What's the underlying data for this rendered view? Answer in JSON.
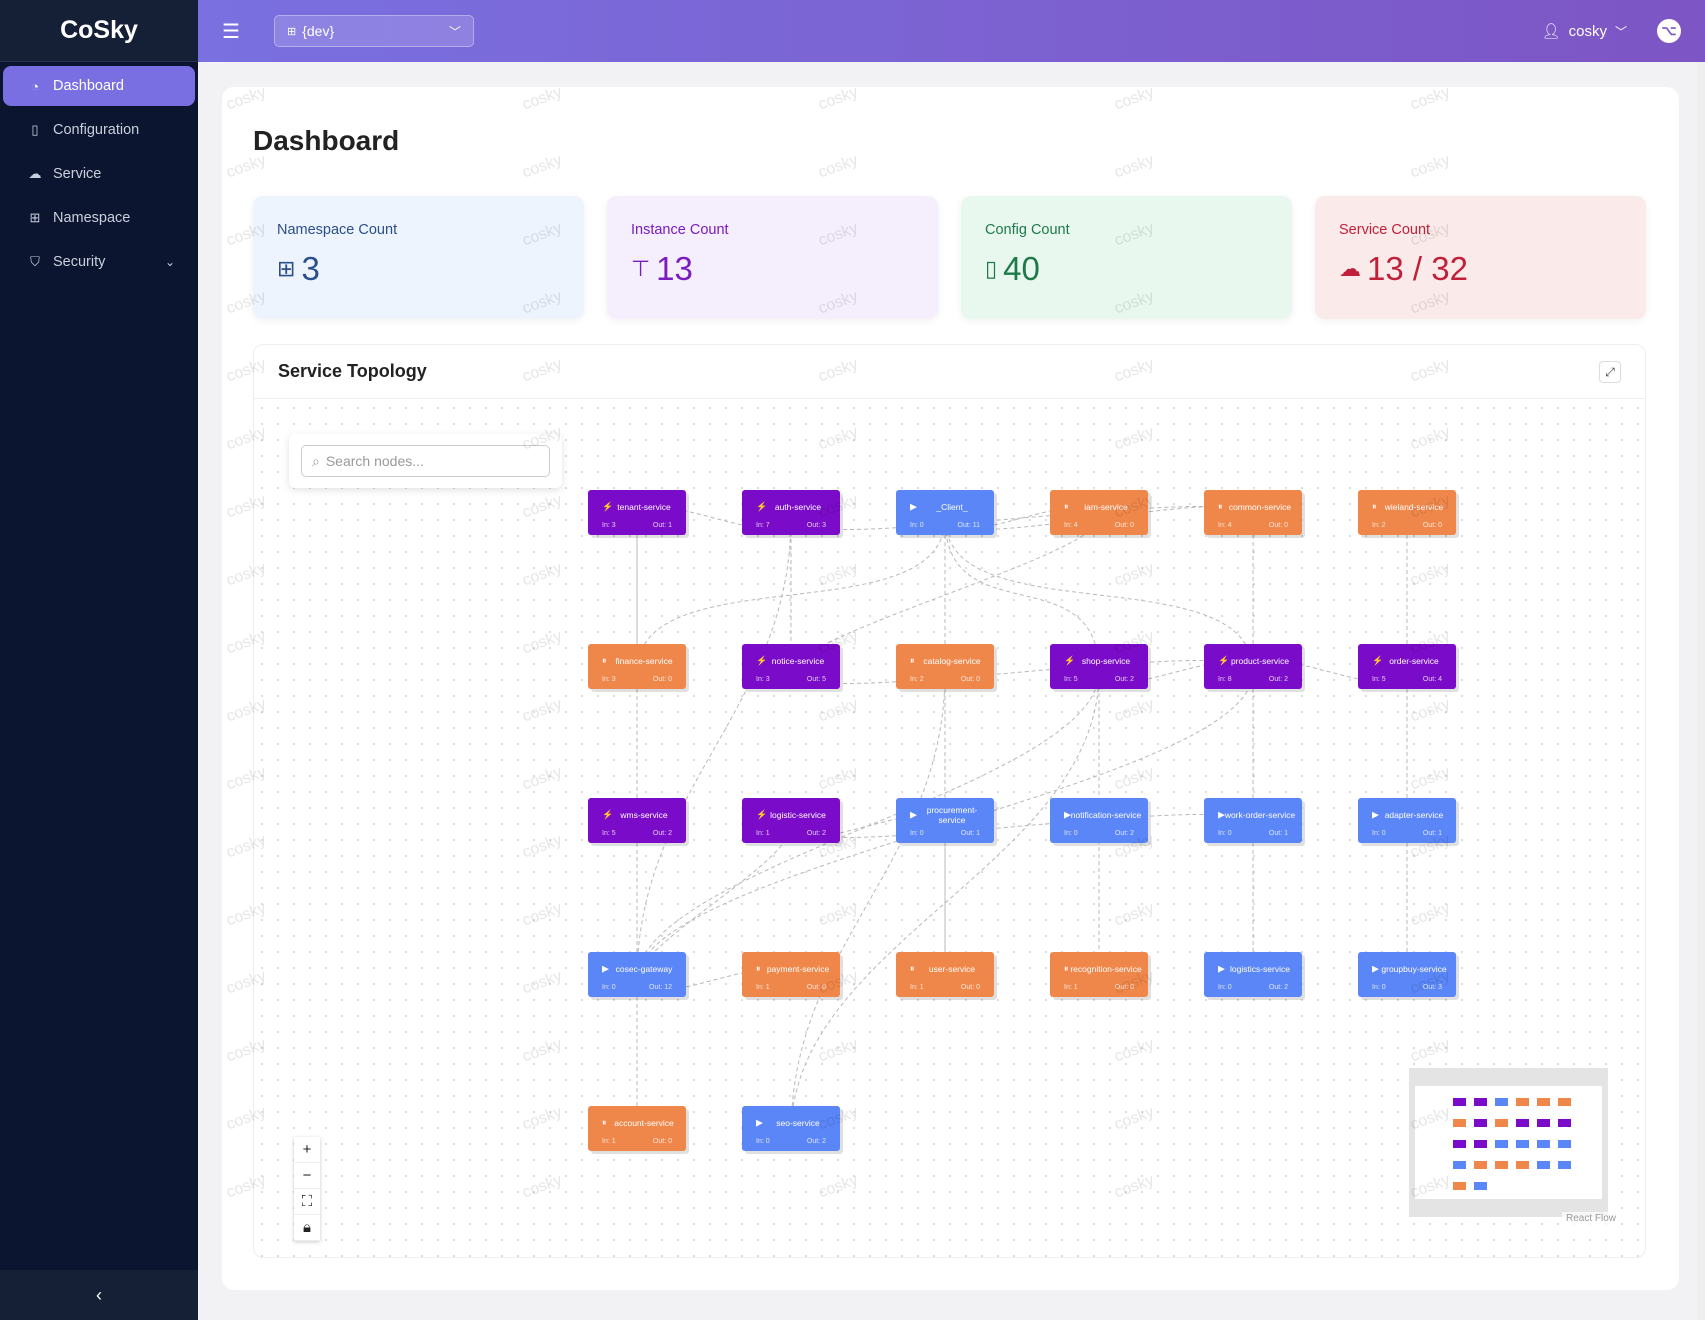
{
  "app": {
    "title": "CoSky",
    "watermark": "cosky"
  },
  "sidebar": {
    "items": [
      {
        "label": "Dashboard",
        "icon": "dashboard-icon",
        "active": true
      },
      {
        "label": "Configuration",
        "icon": "file-icon"
      },
      {
        "label": "Service",
        "icon": "cloud-server-icon"
      },
      {
        "label": "Namespace",
        "icon": "cluster-icon"
      },
      {
        "label": "Security",
        "icon": "shield-icon",
        "expandable": true
      }
    ],
    "collapse_icon": "‹"
  },
  "header": {
    "namespace": "{dev}",
    "user": "cosky"
  },
  "page": {
    "title": "Dashboard"
  },
  "stats": [
    {
      "label": "Namespace Count",
      "value": "3",
      "color": "#2b4f8a",
      "bg": "#edf4fd"
    },
    {
      "label": "Instance Count",
      "value": "13",
      "color": "#7a1cbf",
      "bg": "#f5eefd"
    },
    {
      "label": "Config Count",
      "value": "40",
      "color": "#1f7a4a",
      "bg": "#e8f8ee"
    },
    {
      "label": "Service Count",
      "value": "13 / 32",
      "color": "#c0203a",
      "bg": "#fbeaea"
    }
  ],
  "topology": {
    "title": "Service Topology",
    "search_placeholder": "Search nodes...",
    "attribution": "React Flow",
    "colors": {
      "bolt": "#7a0bc8",
      "play": "#5b86f7",
      "pause": "#f0874a"
    },
    "nodes": [
      {
        "name": "tenant-service",
        "type": "bolt",
        "in": "In: 3",
        "out": "Out: 1"
      },
      {
        "name": "auth-service",
        "type": "bolt",
        "in": "In: 7",
        "out": "Out: 3"
      },
      {
        "name": "_Client_",
        "type": "play",
        "in": "In: 0",
        "out": "Out: 11"
      },
      {
        "name": "iam-service",
        "type": "pause",
        "in": "In: 4",
        "out": "Out: 0"
      },
      {
        "name": "common-service",
        "type": "pause",
        "in": "In: 4",
        "out": "Out: 0"
      },
      {
        "name": "wieland-service",
        "type": "pause",
        "in": "In: 2",
        "out": "Out: 0"
      },
      {
        "name": "finance-service",
        "type": "pause",
        "in": "In: 3",
        "out": "Out: 0"
      },
      {
        "name": "notice-service",
        "type": "bolt",
        "in": "In: 3",
        "out": "Out: 5"
      },
      {
        "name": "catalog-service",
        "type": "pause",
        "in": "In: 2",
        "out": "Out: 0"
      },
      {
        "name": "shop-service",
        "type": "bolt",
        "in": "In: 5",
        "out": "Out: 2"
      },
      {
        "name": "product-service",
        "type": "bolt",
        "in": "In: 8",
        "out": "Out: 2"
      },
      {
        "name": "order-service",
        "type": "bolt",
        "in": "In: 5",
        "out": "Out: 4"
      },
      {
        "name": "wms-service",
        "type": "bolt",
        "in": "In: 5",
        "out": "Out: 2"
      },
      {
        "name": "logistic-service",
        "type": "bolt",
        "in": "In: 1",
        "out": "Out: 2"
      },
      {
        "name": "procurement-service",
        "type": "play",
        "in": "In: 0",
        "out": "Out: 1"
      },
      {
        "name": "notification-service",
        "type": "play",
        "in": "In: 0",
        "out": "Out: 2"
      },
      {
        "name": "work-order-service",
        "type": "play",
        "in": "In: 0",
        "out": "Out: 1"
      },
      {
        "name": "adapter-service",
        "type": "play",
        "in": "In: 0",
        "out": "Out: 1"
      },
      {
        "name": "cosec-gateway",
        "type": "play",
        "in": "In: 0",
        "out": "Out: 12"
      },
      {
        "name": "payment-service",
        "type": "pause",
        "in": "In: 1",
        "out": "Out: 0"
      },
      {
        "name": "user-service",
        "type": "pause",
        "in": "In: 1",
        "out": "Out: 0"
      },
      {
        "name": "recognition-service",
        "type": "pause",
        "in": "In: 1",
        "out": "Out: 0"
      },
      {
        "name": "logistics-service",
        "type": "play",
        "in": "In: 0",
        "out": "Out: 2"
      },
      {
        "name": "groupbuy-service",
        "type": "play",
        "in": "In: 0",
        "out": "Out: 3"
      },
      {
        "name": "account-service",
        "type": "pause",
        "in": "In: 1",
        "out": "Out: 0"
      },
      {
        "name": "seo-service",
        "type": "play",
        "in": "In: 0",
        "out": "Out: 2"
      }
    ]
  }
}
